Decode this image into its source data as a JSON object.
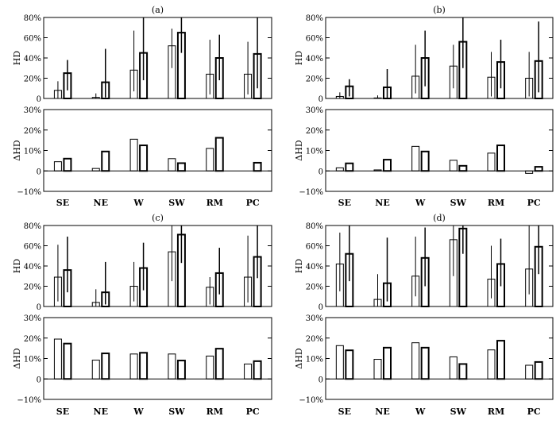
{
  "chart_data": {
    "type": "bar",
    "categories": [
      "SE",
      "NE",
      "W",
      "SW",
      "RM",
      "PC"
    ],
    "hd_axis": {
      "ylabel": "HD",
      "ylim": [
        0,
        80
      ],
      "ticks": [
        "0",
        "20%",
        "40%",
        "60%",
        "80%"
      ]
    },
    "dhd_axis": {
      "ylabel": "ΔHD",
      "ylim": [
        -10,
        30
      ],
      "ticks": [
        "−10%",
        "0",
        "10%",
        "20%",
        "30%"
      ]
    },
    "panels": [
      {
        "title": "(a)",
        "hd": {
          "series": [
            {
              "values": [
                8,
                1,
                28,
                52,
                24,
                24
              ],
              "lo": [
                0,
                0,
                7,
                30,
                4,
                4
              ],
              "hi": [
                17,
                5,
                67,
                69,
                58,
                56
              ]
            },
            {
              "values": [
                25,
                16,
                45,
                65,
                40,
                44
              ],
              "lo": [
                8,
                1,
                18,
                45,
                18,
                10
              ],
              "hi": [
                38,
                49,
                80,
                80,
                63,
                80
              ]
            }
          ]
        },
        "dhd": {
          "series": [
            {
              "values": [
                4.5,
                1.2,
                15.5,
                6,
                11,
                0
              ]
            },
            {
              "values": [
                6,
                9.5,
                12.5,
                3.8,
                16.2,
                4
              ]
            }
          ]
        }
      },
      {
        "title": "(b)",
        "hd": {
          "series": [
            {
              "values": [
                2,
                0.5,
                22,
                32,
                21,
                20
              ],
              "lo": [
                0,
                0,
                5,
                10,
                2,
                2
              ],
              "hi": [
                6,
                3,
                53,
                53,
                46,
                46
              ]
            },
            {
              "values": [
                12,
                11,
                40,
                56,
                36,
                37
              ],
              "lo": [
                2,
                0,
                12,
                30,
                10,
                6
              ],
              "hi": [
                19,
                29,
                67,
                80,
                58,
                76
              ]
            }
          ]
        },
        "dhd": {
          "series": [
            {
              "values": [
                1.5,
                0.5,
                12,
                5.2,
                8.7,
                -1.2
              ]
            },
            {
              "values": [
                3.7,
                5.5,
                9.5,
                2.5,
                12.5,
                2
              ]
            }
          ]
        }
      },
      {
        "title": "(c)",
        "hd": {
          "series": [
            {
              "values": [
                29,
                4,
                20,
                54,
                19,
                29
              ],
              "lo": [
                5,
                0,
                5,
                25,
                2,
                4
              ],
              "hi": [
                61,
                17,
                44,
                80,
                29,
                70
              ]
            },
            {
              "values": [
                36,
                14,
                38,
                71,
                33,
                49
              ],
              "lo": [
                14,
                2,
                16,
                43,
                12,
                28
              ],
              "hi": [
                69,
                44,
                63,
                80,
                58,
                80
              ]
            }
          ]
        },
        "dhd": {
          "series": [
            {
              "values": [
                19.5,
                9.2,
                12.2,
                12.2,
                11.2,
                7.3
              ]
            },
            {
              "values": [
                17.3,
                12.5,
                12.8,
                9,
                14.8,
                8.7
              ]
            }
          ]
        }
      },
      {
        "title": "(d)",
        "hd": {
          "series": [
            {
              "values": [
                42,
                7,
                30,
                66,
                27,
                37
              ],
              "lo": [
                15,
                0,
                10,
                30,
                8,
                12
              ],
              "hi": [
                73,
                32,
                69,
                80,
                60,
                80
              ]
            },
            {
              "values": [
                52,
                23,
                48,
                77,
                42,
                59
              ],
              "lo": [
                25,
                5,
                20,
                52,
                20,
                32
              ],
              "hi": [
                80,
                68,
                78,
                80,
                67,
                80
              ]
            }
          ]
        },
        "dhd": {
          "series": [
            {
              "values": [
                16.3,
                9.6,
                17.7,
                10.8,
                14.2,
                6.7
              ]
            },
            {
              "values": [
                14,
                15.3,
                15.3,
                7.3,
                18.7,
                8.3
              ]
            }
          ]
        }
      }
    ]
  }
}
